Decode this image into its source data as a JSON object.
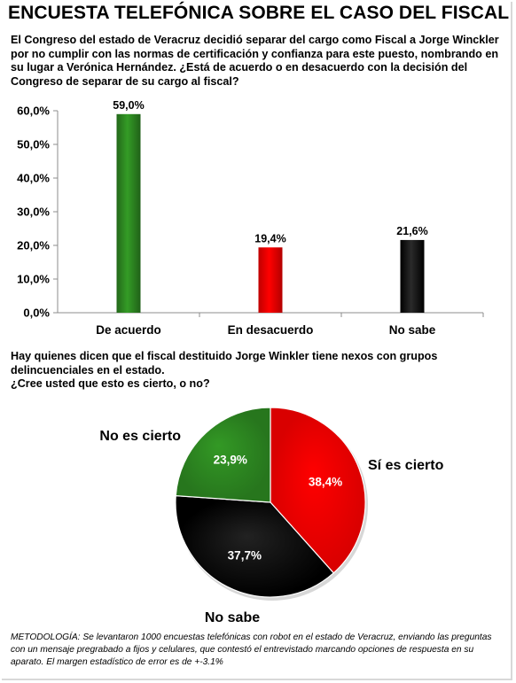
{
  "title": "ENCUESTA TELEFÓNICA SOBRE EL CASO DEL FISCAL",
  "question1": "El Congreso del estado de Veracruz decidió separar del cargo como Fiscal a Jorge Winckler por no cumplir con las normas de certificación y confianza para este puesto, nombrando en su lugar a Verónica Hernández. ¿Está de acuerdo o en desacuerdo con la decisión del Congreso de separar de su cargo al fiscal?",
  "question2_line1": "Hay quienes dicen que el fiscal destituido Jorge Winkler tiene nexos con grupos delincuenciales en el estado.",
  "question2_line2": "¿Cree usted que esto es cierto, o no?",
  "methodology": "METODOLOGÍA: Se levantaron 1000 encuestas telefónicas con robot en el estado de Veracruz, enviando las preguntas con un mensaje pregrabado a fijos y celulares, que contestó el entrevistado marcando opciones de respuesta en su aparato. El margen estadístico de error es de +-3.1%",
  "chart_data": [
    {
      "type": "bar",
      "categories": [
        "De acuerdo",
        "En desacuerdo",
        "No sabe"
      ],
      "values": [
        59.0,
        19.4,
        21.6
      ],
      "value_labels": [
        "59,0%",
        "19,4%",
        "21,6%"
      ],
      "colors": [
        "#2e8b22",
        "#ff0000",
        "#000000"
      ],
      "ylim": [
        0,
        60
      ],
      "yticks": [
        "0,0%",
        "10,0%",
        "20,0%",
        "30,0%",
        "40,0%",
        "50,0%",
        "60,0%"
      ],
      "grid": false
    },
    {
      "type": "pie",
      "labels": [
        "Sí es cierto",
        "No sabe",
        "No es cierto"
      ],
      "values": [
        38.4,
        37.7,
        23.9
      ],
      "value_labels": [
        "38,4%",
        "37,7%",
        "23,9%"
      ],
      "colors": [
        "#ff0000",
        "#000000",
        "#2e8b22"
      ]
    }
  ]
}
